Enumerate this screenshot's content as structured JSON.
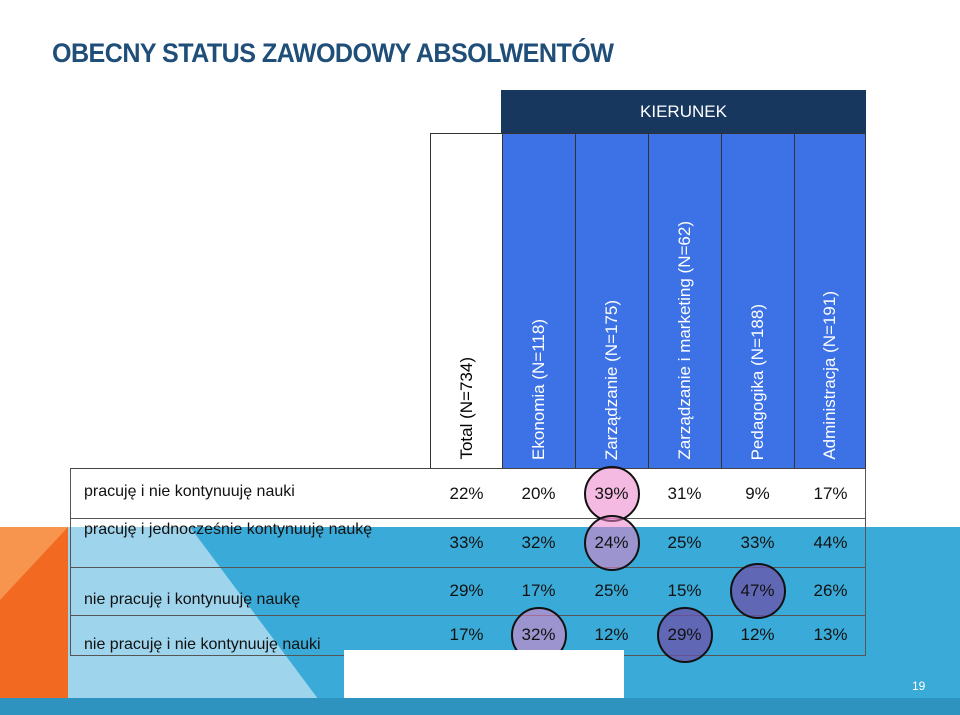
{
  "title": "OBECNY STATUS ZAWODOWY ABSOLWENTÓW",
  "group_header": "KIERUNEK",
  "columns": [
    {
      "label": "Total (N=734)"
    },
    {
      "label": "Ekonomia (N=118)"
    },
    {
      "label": "Zarządzanie (N=175)"
    },
    {
      "label": "Zarządzanie i marketing (N=62)"
    },
    {
      "label": "Pedagogika (N=188)"
    },
    {
      "label": "Administracja (N=191)"
    }
  ],
  "rows": [
    {
      "label": "pracuję i nie kontynuuję nauki",
      "values": [
        "22%",
        "20%",
        "39%",
        "31%",
        "9%",
        "17%"
      ]
    },
    {
      "label": "pracuję i jednocześnie kontynuuję naukę",
      "values": [
        "33%",
        "32%",
        "24%",
        "25%",
        "33%",
        "44%"
      ]
    },
    {
      "label": "nie pracuję i kontynuuję naukę",
      "values": [
        "29%",
        "17%",
        "25%",
        "15%",
        "47%",
        "26%"
      ]
    },
    {
      "label": "nie pracuję i nie kontynuuję nauki",
      "values": [
        "17%",
        "32%",
        "12%",
        "29%",
        "12%",
        "13%"
      ]
    }
  ],
  "highlights": [
    {
      "row": 0,
      "col": 2,
      "color": "pink"
    },
    {
      "row": 1,
      "col": 2,
      "color": "pink"
    },
    {
      "row": 2,
      "col": 4,
      "color": "purple"
    },
    {
      "row": 3,
      "col": 1,
      "color": "pink"
    },
    {
      "row": 3,
      "col": 3,
      "color": "purple"
    }
  ],
  "page_number": "19",
  "colors": {
    "title": "#1f4e79",
    "header_dark": "#17375e",
    "header_blue": "#3c72e6",
    "bg_cyan": "#3aabd8",
    "bg_orange": "#f26a21"
  }
}
